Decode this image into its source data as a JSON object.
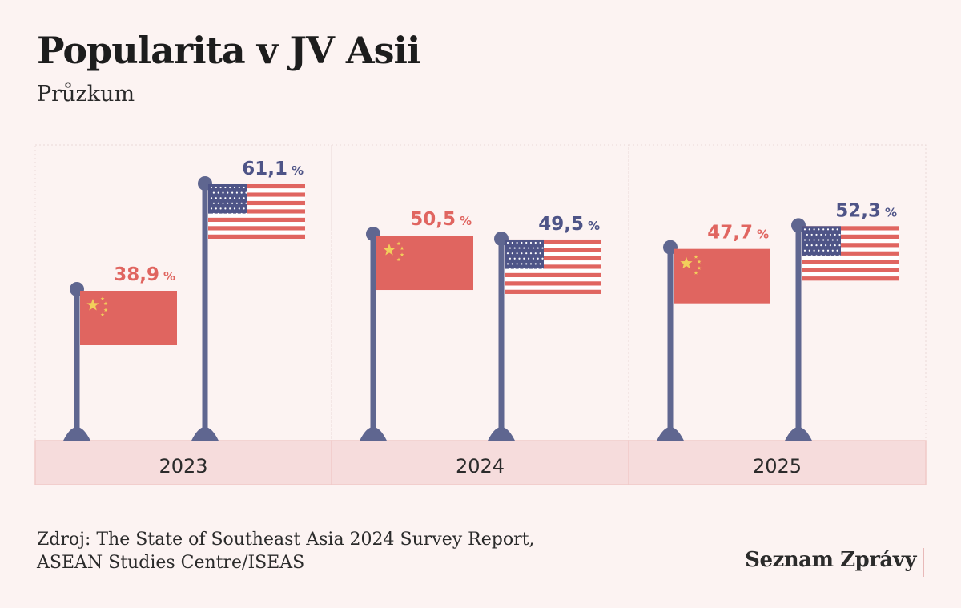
{
  "title": "Popularita v JV Asii",
  "subtitle": "Průzkum",
  "source": {
    "line1": "Zdroj: The State of Southeast Asia 2024 Survey Report,",
    "line2": "ASEAN Studies Centre/ISEAS"
  },
  "brand": "Seznam Zprávy",
  "colors": {
    "china": "#e06560",
    "usa_text": "#4e5487",
    "pole": "#5f6690",
    "year_band": "#f6dcdc",
    "background": "#fcf3f2",
    "star": "#f2cf5b"
  },
  "chart_data": {
    "type": "bar",
    "categories": [
      "2023",
      "2024",
      "2025"
    ],
    "unit": "%",
    "series": [
      {
        "flag": "china-flag",
        "values": [
          38.9,
          50.5,
          47.7
        ],
        "labels": [
          "38,9",
          "50,5",
          "47,7"
        ]
      },
      {
        "flag": "usa-flag",
        "values": [
          61.1,
          49.5,
          52.3
        ],
        "labels": [
          "61,1",
          "49,5",
          "52,3"
        ]
      }
    ]
  }
}
